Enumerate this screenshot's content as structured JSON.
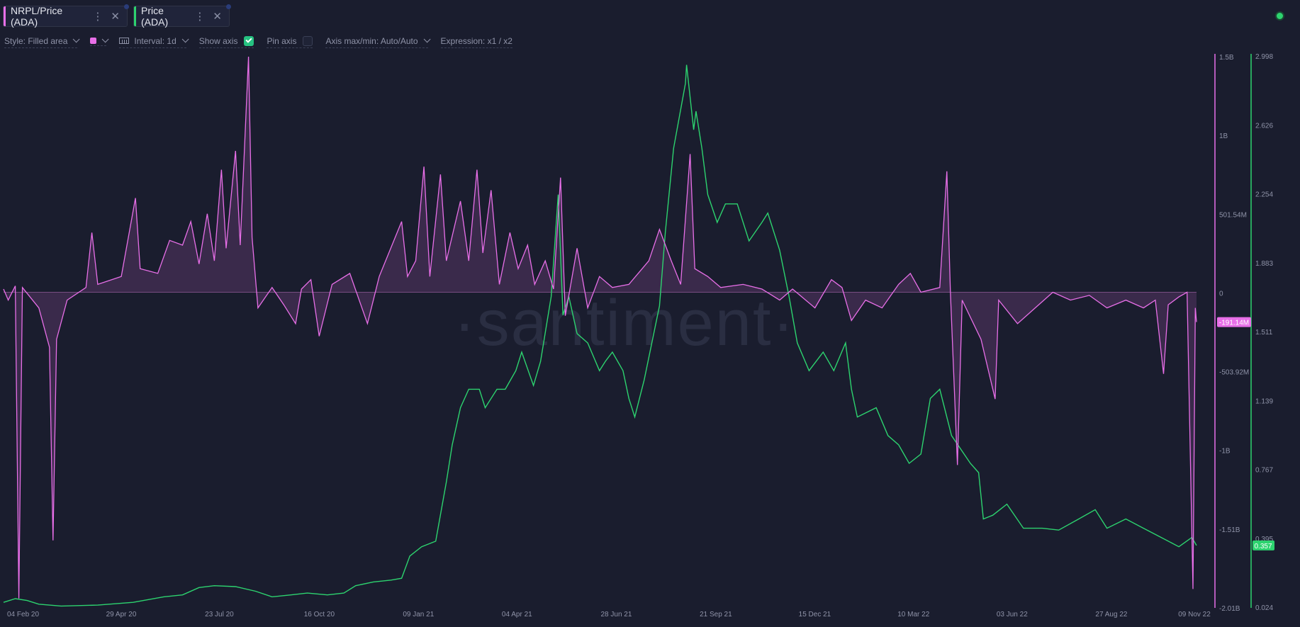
{
  "tabs": [
    {
      "label": "NRPL/Price (ADA)",
      "color": "#e86fe8"
    },
    {
      "label": "Price (ADA)",
      "color": "#2dd36f"
    }
  ],
  "toolbar": {
    "style": "Style: Filled area",
    "interval": "Interval: 1d",
    "show_axis": "Show axis",
    "pin_axis": "Pin axis",
    "axis_maxmin": "Axis max/min: Auto/Auto",
    "expression": "Expression: x1 / x2"
  },
  "watermark": "·santiment·",
  "chart_data": {
    "type": "line",
    "x": [
      "2020-01-31",
      "2022-11-09"
    ],
    "x_ticks": [
      "04 Feb 20",
      "29 Apr 20",
      "23 Jul 20",
      "16 Oct 20",
      "09 Jan 21",
      "04 Apr 21",
      "28 Jun 21",
      "21 Sep 21",
      "15 Dec 21",
      "10 Mar 22",
      "03 Jun 22",
      "27 Aug 22",
      "09 Nov 22"
    ],
    "grid": false,
    "series": [
      {
        "name": "NRPL/Price (ADA)",
        "axis": "left",
        "style": "filled area",
        "color": "#e86fe8",
        "ylim": [
          -2010000000,
          1500000000
        ],
        "ticks": [
          "1.5B",
          "1B",
          "501.54M",
          "0",
          "-503.92M",
          "-1B",
          "-1.51B",
          "-2.01B"
        ],
        "last_value_label": "-191.14M",
        "points": [
          [
            "2020-01-31",
            0.02
          ],
          [
            "2020-02-04",
            -0.05
          ],
          [
            "2020-02-10",
            0.04
          ],
          [
            "2020-02-13",
            -1.95
          ],
          [
            "2020-02-16",
            0.03
          ],
          [
            "2020-03-01",
            -0.1
          ],
          [
            "2020-03-10",
            -0.35
          ],
          [
            "2020-03-13",
            -1.58
          ],
          [
            "2020-03-16",
            -0.3
          ],
          [
            "2020-03-25",
            -0.05
          ],
          [
            "2020-04-10",
            0.03
          ],
          [
            "2020-04-15",
            0.38
          ],
          [
            "2020-04-20",
            0.05
          ],
          [
            "2020-05-10",
            0.1
          ],
          [
            "2020-05-22",
            0.6
          ],
          [
            "2020-05-26",
            0.15
          ],
          [
            "2020-06-10",
            0.12
          ],
          [
            "2020-06-20",
            0.33
          ],
          [
            "2020-07-01",
            0.3
          ],
          [
            "2020-07-08",
            0.45
          ],
          [
            "2020-07-15",
            0.18
          ],
          [
            "2020-07-22",
            0.5
          ],
          [
            "2020-07-28",
            0.2
          ],
          [
            "2020-08-03",
            0.78
          ],
          [
            "2020-08-07",
            0.28
          ],
          [
            "2020-08-15",
            0.9
          ],
          [
            "2020-08-19",
            0.3
          ],
          [
            "2020-08-26",
            1.5
          ],
          [
            "2020-08-29",
            0.35
          ],
          [
            "2020-09-03",
            -0.1
          ],
          [
            "2020-09-15",
            0.03
          ],
          [
            "2020-09-25",
            -0.08
          ],
          [
            "2020-10-05",
            -0.2
          ],
          [
            "2020-10-10",
            0.02
          ],
          [
            "2020-10-18",
            0.08
          ],
          [
            "2020-10-25",
            -0.28
          ],
          [
            "2020-11-05",
            0.05
          ],
          [
            "2020-11-20",
            0.12
          ],
          [
            "2020-12-05",
            -0.2
          ],
          [
            "2020-12-15",
            0.1
          ],
          [
            "2021-01-03",
            0.45
          ],
          [
            "2021-01-08",
            0.1
          ],
          [
            "2021-01-15",
            0.2
          ],
          [
            "2021-01-22",
            0.8
          ],
          [
            "2021-01-27",
            0.1
          ],
          [
            "2021-02-05",
            0.75
          ],
          [
            "2021-02-10",
            0.2
          ],
          [
            "2021-02-22",
            0.58
          ],
          [
            "2021-03-01",
            0.2
          ],
          [
            "2021-03-08",
            0.78
          ],
          [
            "2021-03-13",
            0.25
          ],
          [
            "2021-03-20",
            0.65
          ],
          [
            "2021-03-27",
            0.05
          ],
          [
            "2021-04-05",
            0.38
          ],
          [
            "2021-04-12",
            0.15
          ],
          [
            "2021-04-20",
            0.3
          ],
          [
            "2021-04-26",
            0.05
          ],
          [
            "2021-05-05",
            0.2
          ],
          [
            "2021-05-12",
            0.02
          ],
          [
            "2021-05-18",
            0.73
          ],
          [
            "2021-05-22",
            -0.15
          ],
          [
            "2021-06-01",
            0.28
          ],
          [
            "2021-06-10",
            -0.1
          ],
          [
            "2021-06-20",
            0.1
          ],
          [
            "2021-07-01",
            0.03
          ],
          [
            "2021-07-15",
            0.05
          ],
          [
            "2021-08-01",
            0.2
          ],
          [
            "2021-08-10",
            0.4
          ],
          [
            "2021-08-20",
            0.2
          ],
          [
            "2021-08-28",
            0.05
          ],
          [
            "2021-09-05",
            0.88
          ],
          [
            "2021-09-09",
            0.15
          ],
          [
            "2021-09-20",
            0.1
          ],
          [
            "2021-10-01",
            0.03
          ],
          [
            "2021-10-20",
            0.05
          ],
          [
            "2021-11-05",
            0.02
          ],
          [
            "2021-11-20",
            -0.05
          ],
          [
            "2021-12-01",
            0.02
          ],
          [
            "2021-12-20",
            -0.1
          ],
          [
            "2022-01-03",
            0.08
          ],
          [
            "2022-01-12",
            0.03
          ],
          [
            "2022-01-20",
            -0.18
          ],
          [
            "2022-02-01",
            -0.05
          ],
          [
            "2022-02-15",
            -0.1
          ],
          [
            "2022-03-01",
            0.05
          ],
          [
            "2022-03-11",
            0.12
          ],
          [
            "2022-03-20",
            0.0
          ],
          [
            "2022-04-05",
            0.03
          ],
          [
            "2022-04-11",
            0.77
          ],
          [
            "2022-04-14",
            0.0
          ],
          [
            "2022-04-20",
            -1.1
          ],
          [
            "2022-04-24",
            -0.05
          ],
          [
            "2022-05-10",
            -0.3
          ],
          [
            "2022-05-22",
            -0.68
          ],
          [
            "2022-05-25",
            -0.05
          ],
          [
            "2022-06-10",
            -0.2
          ],
          [
            "2022-06-25",
            -0.1
          ],
          [
            "2022-07-10",
            0.0
          ],
          [
            "2022-07-25",
            -0.05
          ],
          [
            "2022-08-10",
            -0.02
          ],
          [
            "2022-08-25",
            -0.1
          ],
          [
            "2022-09-10",
            -0.05
          ],
          [
            "2022-09-25",
            -0.1
          ],
          [
            "2022-10-05",
            -0.05
          ],
          [
            "2022-10-12",
            -0.52
          ],
          [
            "2022-10-16",
            -0.08
          ],
          [
            "2022-10-25",
            -0.03
          ],
          [
            "2022-11-01",
            0.0
          ],
          [
            "2022-11-06",
            -1.89
          ],
          [
            "2022-11-08",
            -0.1
          ],
          [
            "2022-11-09",
            -0.19
          ]
        ]
      },
      {
        "name": "Price (ADA)",
        "axis": "right",
        "style": "line",
        "color": "#2dd36f",
        "ylim": [
          0.024,
          2.998
        ],
        "ticks": [
          "2.998",
          "2.626",
          "2.254",
          "1.883",
          "1.511",
          "1.139",
          "0.767",
          "0.395",
          "0.024"
        ],
        "last_value_label": "0.357",
        "points": [
          [
            "2020-01-31",
            0.05
          ],
          [
            "2020-02-10",
            0.07
          ],
          [
            "2020-02-20",
            0.06
          ],
          [
            "2020-03-01",
            0.04
          ],
          [
            "2020-03-20",
            0.03
          ],
          [
            "2020-04-20",
            0.035
          ],
          [
            "2020-05-20",
            0.05
          ],
          [
            "2020-06-15",
            0.08
          ],
          [
            "2020-07-01",
            0.09
          ],
          [
            "2020-07-15",
            0.13
          ],
          [
            "2020-07-28",
            0.14
          ],
          [
            "2020-08-15",
            0.135
          ],
          [
            "2020-09-01",
            0.11
          ],
          [
            "2020-09-15",
            0.08
          ],
          [
            "2020-10-01",
            0.09
          ],
          [
            "2020-10-15",
            0.1
          ],
          [
            "2020-11-01",
            0.09
          ],
          [
            "2020-11-15",
            0.1
          ],
          [
            "2020-11-25",
            0.14
          ],
          [
            "2020-12-10",
            0.16
          ],
          [
            "2020-12-25",
            0.17
          ],
          [
            "2021-01-03",
            0.18
          ],
          [
            "2021-01-10",
            0.3
          ],
          [
            "2021-01-20",
            0.35
          ],
          [
            "2021-02-01",
            0.38
          ],
          [
            "2021-02-10",
            0.7
          ],
          [
            "2021-02-15",
            0.9
          ],
          [
            "2021-02-22",
            1.1
          ],
          [
            "2021-03-01",
            1.2
          ],
          [
            "2021-03-10",
            1.2
          ],
          [
            "2021-03-15",
            1.1
          ],
          [
            "2021-03-25",
            1.2
          ],
          [
            "2021-04-01",
            1.2
          ],
          [
            "2021-04-10",
            1.3
          ],
          [
            "2021-04-15",
            1.4
          ],
          [
            "2021-04-25",
            1.22
          ],
          [
            "2021-05-01",
            1.35
          ],
          [
            "2021-05-10",
            1.7
          ],
          [
            "2021-05-16",
            2.25
          ],
          [
            "2021-05-20",
            1.6
          ],
          [
            "2021-05-25",
            1.7
          ],
          [
            "2021-06-01",
            1.5
          ],
          [
            "2021-06-10",
            1.45
          ],
          [
            "2021-06-20",
            1.3
          ],
          [
            "2021-06-25",
            1.35
          ],
          [
            "2021-07-01",
            1.4
          ],
          [
            "2021-07-10",
            1.3
          ],
          [
            "2021-07-15",
            1.15
          ],
          [
            "2021-07-20",
            1.05
          ],
          [
            "2021-07-28",
            1.25
          ],
          [
            "2021-08-10",
            1.65
          ],
          [
            "2021-08-15",
            2.05
          ],
          [
            "2021-08-22",
            2.5
          ],
          [
            "2021-09-01",
            2.85
          ],
          [
            "2021-09-02",
            2.95
          ],
          [
            "2021-09-08",
            2.6
          ],
          [
            "2021-09-10",
            2.7
          ],
          [
            "2021-09-15",
            2.5
          ],
          [
            "2021-09-20",
            2.25
          ],
          [
            "2021-09-28",
            2.1
          ],
          [
            "2021-10-05",
            2.2
          ],
          [
            "2021-10-15",
            2.2
          ],
          [
            "2021-10-25",
            2.0
          ],
          [
            "2021-11-05",
            2.1
          ],
          [
            "2021-11-10",
            2.15
          ],
          [
            "2021-11-20",
            1.95
          ],
          [
            "2021-11-28",
            1.7
          ],
          [
            "2021-12-05",
            1.45
          ],
          [
            "2021-12-15",
            1.3
          ],
          [
            "2021-12-27",
            1.4
          ],
          [
            "2022-01-05",
            1.3
          ],
          [
            "2022-01-15",
            1.45
          ],
          [
            "2022-01-20",
            1.2
          ],
          [
            "2022-01-25",
            1.05
          ],
          [
            "2022-02-10",
            1.1
          ],
          [
            "2022-02-20",
            0.95
          ],
          [
            "2022-03-01",
            0.9
          ],
          [
            "2022-03-10",
            0.8
          ],
          [
            "2022-03-20",
            0.85
          ],
          [
            "2022-03-28",
            1.15
          ],
          [
            "2022-04-05",
            1.2
          ],
          [
            "2022-04-15",
            0.95
          ],
          [
            "2022-05-01",
            0.8
          ],
          [
            "2022-05-08",
            0.75
          ],
          [
            "2022-05-12",
            0.5
          ],
          [
            "2022-05-20",
            0.52
          ],
          [
            "2022-06-01",
            0.58
          ],
          [
            "2022-06-15",
            0.45
          ],
          [
            "2022-07-01",
            0.45
          ],
          [
            "2022-07-15",
            0.44
          ],
          [
            "2022-08-01",
            0.5
          ],
          [
            "2022-08-15",
            0.55
          ],
          [
            "2022-08-25",
            0.45
          ],
          [
            "2022-09-10",
            0.5
          ],
          [
            "2022-09-25",
            0.45
          ],
          [
            "2022-10-10",
            0.4
          ],
          [
            "2022-10-25",
            0.35
          ],
          [
            "2022-11-05",
            0.4
          ],
          [
            "2022-11-09",
            0.357
          ]
        ]
      }
    ]
  }
}
